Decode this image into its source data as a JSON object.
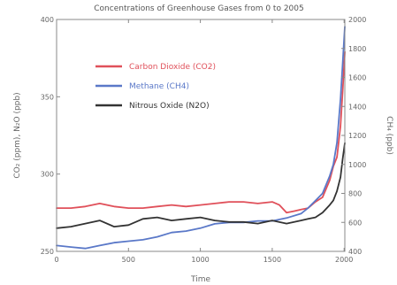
{
  "chart_data": {
    "type": "line",
    "title": "Concentrations of Greenhouse Gases from 0 to 2005",
    "xlabel": "Time",
    "ylabel_left": "CO₂ (ppm), N₂O (ppb)",
    "ylabel_right": "CH₄ (ppb)",
    "xlim": [
      0,
      2005
    ],
    "ylim_left": [
      250,
      400
    ],
    "ylim_right": [
      400,
      2000
    ],
    "x_ticks": [
      0,
      500,
      1000,
      1500,
      2000
    ],
    "x_tick_labels": [
      "0",
      "500",
      "1000",
      "1500",
      "2000"
    ],
    "y_left_ticks": [
      250,
      300,
      350,
      400
    ],
    "y_left_tick_labels": [
      "250",
      "300",
      "350",
      "400"
    ],
    "y_right_ticks": [
      400,
      600,
      800,
      1000,
      1200,
      1400,
      1600,
      1800,
      2000
    ],
    "y_right_tick_labels": [
      "400",
      "600",
      "800",
      "1000",
      "1200",
      "1400",
      "1600",
      "1800",
      "2000"
    ],
    "legend_position": "upper-left",
    "series": [
      {
        "name": "Carbon Dioxide (CO2)",
        "axis": "left",
        "color": "#e0505a",
        "x": [
          0,
          100,
          200,
          300,
          400,
          500,
          600,
          700,
          800,
          900,
          1000,
          1100,
          1200,
          1300,
          1400,
          1500,
          1550,
          1600,
          1650,
          1700,
          1750,
          1800,
          1850,
          1900,
          1925,
          1950,
          1975,
          1990,
          2005
        ],
        "y": [
          278,
          278,
          279,
          281,
          279,
          278,
          278,
          279,
          280,
          279,
          280,
          281,
          282,
          282,
          281,
          282,
          280,
          275,
          276,
          277,
          278,
          282,
          285,
          296,
          305,
          311,
          331,
          354,
          379
        ]
      },
      {
        "name": "Methane (CH4)",
        "axis": "right",
        "color": "#5a78c8",
        "x": [
          0,
          100,
          200,
          300,
          400,
          500,
          600,
          700,
          800,
          900,
          1000,
          1100,
          1200,
          1300,
          1400,
          1500,
          1600,
          1700,
          1750,
          1800,
          1850,
          1900,
          1925,
          1950,
          1975,
          1990,
          2005
        ],
        "y": [
          440,
          430,
          420,
          440,
          460,
          470,
          480,
          500,
          530,
          540,
          560,
          590,
          600,
          600,
          610,
          610,
          630,
          660,
          700,
          750,
          800,
          920,
          1000,
          1150,
          1450,
          1700,
          1950
        ]
      },
      {
        "name": "Nitrous Oxide (N2O)",
        "axis": "left",
        "color": "#333333",
        "x": [
          0,
          100,
          200,
          300,
          400,
          500,
          600,
          700,
          800,
          900,
          1000,
          1100,
          1200,
          1300,
          1400,
          1500,
          1600,
          1700,
          1750,
          1800,
          1850,
          1900,
          1925,
          1950,
          1975,
          1990,
          2005
        ],
        "y": [
          265,
          266,
          268,
          270,
          266,
          267,
          271,
          272,
          270,
          271,
          272,
          270,
          269,
          269,
          268,
          270,
          268,
          270,
          271,
          272,
          275,
          280,
          283,
          289,
          298,
          310,
          320
        ]
      }
    ]
  }
}
